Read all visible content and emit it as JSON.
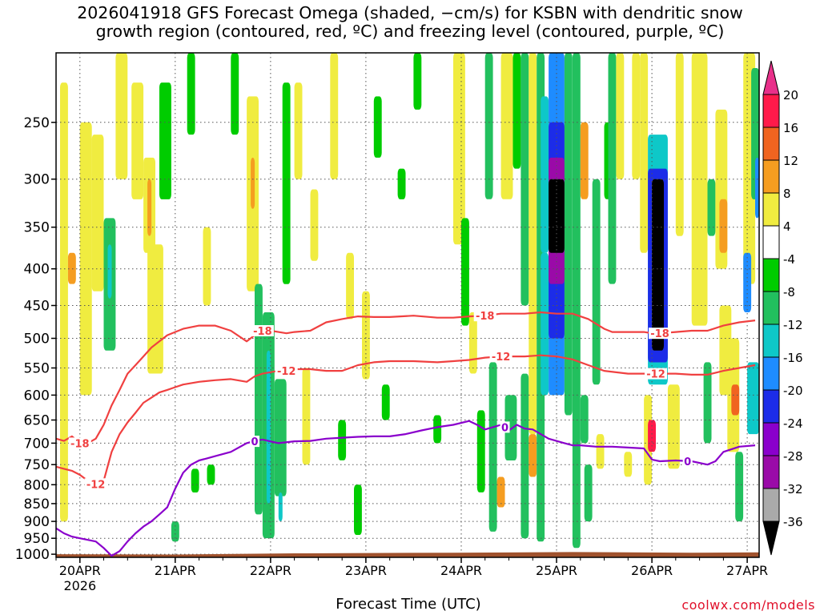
{
  "title": {
    "line1": "2026041918 GFS Forecast Omega (shaded, −cm/s) for KSBN with dendritic snow",
    "line2": "growth region (contoured, red, ºC) and freezing level (contoured, purple, ºC)"
  },
  "xlabel": "Forecast Time (UTC)",
  "credit": "coolwx.com/models",
  "chart_data": {
    "type": "heatmap",
    "title": "2026041918 GFS Forecast Omega (shaded, −cm/s) for KSBN with dendritic snow growth region (contoured, red, ºC) and freezing level (contoured, purple, ºC)",
    "xlabel": "Forecast Time (UTC)",
    "ylabel": "",
    "x_unit": "hours since 2026-04-19 18Z",
    "x_range": [
      0,
      177
    ],
    "y_range": [
      1010,
      200
    ],
    "y_scale": "log-pressure",
    "y_ticks": [
      250,
      300,
      350,
      400,
      450,
      500,
      550,
      600,
      650,
      700,
      750,
      800,
      850,
      900,
      950,
      1000
    ],
    "x_ticks": [
      {
        "hour": 6,
        "label": "20APR",
        "sublabel": "2026"
      },
      {
        "hour": 30,
        "label": "21APR"
      },
      {
        "hour": 54,
        "label": "22APR"
      },
      {
        "hour": 78,
        "label": "23APR"
      },
      {
        "hour": 102,
        "label": "24APR"
      },
      {
        "hour": 126,
        "label": "25APR"
      },
      {
        "hour": 150,
        "label": "26APR"
      },
      {
        "hour": 174,
        "label": "27APR"
      }
    ],
    "grid": true,
    "colorbar": {
      "labels": [
        "20",
        "16",
        "12",
        "8",
        "4",
        "-4",
        "-8",
        "-12",
        "-16",
        "-20",
        "-24",
        "-28",
        "-32",
        "-36"
      ],
      "colors": [
        "#ff1a4a",
        "#f06420",
        "#f59d20",
        "#e5c53a",
        "#f0ec40",
        "#ffffff",
        "#00cc00",
        "#22c05e",
        "#0ec8c8",
        "#1e8cff",
        "#1c2ce8",
        "#8a00cc",
        "#9a0aa8",
        "#aaaaaa",
        "#000000"
      ],
      "top_arrow_color": "#e8308a",
      "bottom_arrow_color": "#000000"
    },
    "series": [
      {
        "name": "-18",
        "color": "#f04040",
        "x": [
          0,
          2,
          4,
          6,
          8,
          10,
          12,
          14,
          16,
          18,
          20,
          22,
          24,
          26,
          28,
          30,
          32,
          36,
          40,
          44,
          48,
          50,
          52,
          54,
          56,
          58,
          60,
          64,
          68,
          72,
          74,
          76,
          80,
          84,
          90,
          96,
          100,
          104,
          108,
          112,
          118,
          122,
          126,
          130,
          134,
          138,
          140,
          144,
          148,
          150,
          152,
          156,
          160,
          164,
          168,
          172,
          176
        ],
        "y": [
          690,
          695,
          685,
          700,
          700,
          690,
          660,
          620,
          590,
          560,
          545,
          530,
          515,
          505,
          495,
          490,
          485,
          480,
          480,
          488,
          505,
          495,
          490,
          488,
          490,
          492,
          490,
          488,
          475,
          470,
          468,
          466,
          467,
          467,
          465,
          468,
          468,
          466,
          465,
          462,
          462,
          460,
          462,
          462,
          470,
          485,
          490,
          490,
          490,
          492,
          492,
          490,
          488,
          488,
          480,
          475,
          472
        ]
      },
      {
        "name": "-12",
        "color": "#f04040",
        "x": [
          0,
          2,
          4,
          6,
          8,
          10,
          12,
          14,
          16,
          18,
          20,
          22,
          24,
          26,
          28,
          30,
          32,
          36,
          40,
          44,
          48,
          50,
          52,
          56,
          60,
          64,
          68,
          72,
          76,
          80,
          84,
          90,
          96,
          100,
          104,
          108,
          112,
          118,
          122,
          126,
          130,
          134,
          138,
          144,
          148,
          150,
          152,
          156,
          160,
          164,
          168,
          172,
          176
        ],
        "y": [
          755,
          760,
          765,
          775,
          790,
          800,
          790,
          720,
          680,
          655,
          635,
          615,
          605,
          595,
          590,
          585,
          580,
          575,
          572,
          570,
          575,
          565,
          560,
          555,
          552,
          552,
          555,
          555,
          545,
          540,
          538,
          538,
          540,
          538,
          536,
          532,
          530,
          530,
          528,
          530,
          535,
          545,
          555,
          560,
          560,
          560,
          560,
          560,
          562,
          562,
          555,
          550,
          545
        ]
      },
      {
        "name": "0",
        "color": "#8a00cc",
        "x": [
          0,
          2,
          4,
          6,
          8,
          10,
          12,
          14,
          16,
          18,
          20,
          22,
          24,
          26,
          28,
          30,
          32,
          34,
          36,
          38,
          40,
          44,
          48,
          50,
          52,
          56,
          60,
          64,
          68,
          72,
          76,
          80,
          84,
          88,
          92,
          96,
          100,
          104,
          106,
          108,
          110,
          112,
          114,
          116,
          118,
          120,
          124,
          128,
          130,
          132,
          136,
          140,
          144,
          148,
          150,
          152,
          156,
          160,
          164,
          166,
          168,
          172,
          176
        ],
        "y": [
          920,
          935,
          945,
          950,
          955,
          960,
          980,
          1005,
          990,
          960,
          935,
          915,
          900,
          880,
          860,
          810,
          770,
          750,
          740,
          735,
          730,
          720,
          700,
          695,
          692,
          700,
          696,
          695,
          690,
          688,
          686,
          685,
          685,
          680,
          672,
          665,
          660,
          652,
          660,
          670,
          665,
          660,
          672,
          660,
          668,
          670,
          690,
          700,
          705,
          705,
          708,
          708,
          710,
          712,
          738,
          742,
          740,
          742,
          750,
          742,
          720,
          708,
          705
        ]
      }
    ],
    "contour_labels": [
      {
        "text": "-18",
        "series": "-18",
        "hour": 6,
        "p": 700
      },
      {
        "text": "-18",
        "series": "-18",
        "hour": 52,
        "p": 488
      },
      {
        "text": "-18",
        "series": "-18",
        "hour": 108,
        "p": 465
      },
      {
        "text": "-18",
        "series": "-18",
        "hour": 152,
        "p": 492
      },
      {
        "text": "-12",
        "series": "-12",
        "hour": 10,
        "p": 798
      },
      {
        "text": "-12",
        "series": "-12",
        "hour": 58,
        "p": 555
      },
      {
        "text": "-12",
        "series": "-12",
        "hour": 112,
        "p": 530
      },
      {
        "text": "-12",
        "series": "-12",
        "hour": 151,
        "p": 560
      },
      {
        "text": "0",
        "series": "0",
        "hour": 50,
        "p": 696
      },
      {
        "text": "0",
        "series": "0",
        "hour": 113,
        "p": 665
      },
      {
        "text": "0",
        "series": "0",
        "hour": 159,
        "p": 742
      }
    ],
    "omega_cells": [
      {
        "x0": 1,
        "x1": 3,
        "p0": 220,
        "p1": 900,
        "v": 5
      },
      {
        "x0": 3,
        "x1": 5,
        "p0": 380,
        "p1": 420,
        "v": 9
      },
      {
        "x0": 6,
        "x1": 9,
        "p0": 250,
        "p1": 600,
        "v": 5
      },
      {
        "x0": 9,
        "x1": 12,
        "p0": 260,
        "p1": 430,
        "v": 5
      },
      {
        "x0": 12,
        "x1": 15,
        "p0": 340,
        "p1": 520,
        "v": -8
      },
      {
        "x0": 13,
        "x1": 14,
        "p0": 370,
        "p1": 440,
        "v": -12
      },
      {
        "x0": 15,
        "x1": 18,
        "p0": 200,
        "p1": 300,
        "v": 5
      },
      {
        "x0": 19,
        "x1": 22,
        "p0": 220,
        "p1": 320,
        "v": 5
      },
      {
        "x0": 22,
        "x1": 25,
        "p0": 280,
        "p1": 380,
        "v": 6
      },
      {
        "x0": 23,
        "x1": 24,
        "p0": 300,
        "p1": 360,
        "v": 9
      },
      {
        "x0": 23,
        "x1": 27,
        "p0": 370,
        "p1": 560,
        "v": 5
      },
      {
        "x0": 26,
        "x1": 29,
        "p0": 220,
        "p1": 320,
        "v": -7
      },
      {
        "x0": 29,
        "x1": 31,
        "p0": 900,
        "p1": 960,
        "v": -8
      },
      {
        "x0": 33,
        "x1": 35,
        "p0": 200,
        "p1": 260,
        "v": -7
      },
      {
        "x0": 34,
        "x1": 36,
        "p0": 760,
        "p1": 820,
        "v": -7
      },
      {
        "x0": 37,
        "x1": 39,
        "p0": 350,
        "p1": 450,
        "v": 5
      },
      {
        "x0": 38,
        "x1": 40,
        "p0": 750,
        "p1": 800,
        "v": -7
      },
      {
        "x0": 44,
        "x1": 46,
        "p0": 200,
        "p1": 260,
        "v": -7
      },
      {
        "x0": 48,
        "x1": 51,
        "p0": 230,
        "p1": 430,
        "v": 6
      },
      {
        "x0": 49,
        "x1": 50,
        "p0": 280,
        "p1": 330,
        "v": 10
      },
      {
        "x0": 50,
        "x1": 52,
        "p0": 420,
        "p1": 880,
        "v": -8
      },
      {
        "x0": 52,
        "x1": 55,
        "p0": 460,
        "p1": 950,
        "v": -8
      },
      {
        "x0": 53,
        "x1": 54,
        "p0": 520,
        "p1": 850,
        "v": -12
      },
      {
        "x0": 53,
        "x1": 54,
        "p0": 560,
        "p1": 800,
        "v": -14
      },
      {
        "x0": 55,
        "x1": 58,
        "p0": 570,
        "p1": 830,
        "v": -8
      },
      {
        "x0": 56,
        "x1": 57,
        "p0": 820,
        "p1": 900,
        "v": -12
      },
      {
        "x0": 57,
        "x1": 59,
        "p0": 220,
        "p1": 420,
        "v": -7
      },
      {
        "x0": 60,
        "x1": 62,
        "p0": 220,
        "p1": 300,
        "v": 5
      },
      {
        "x0": 62,
        "x1": 64,
        "p0": 550,
        "p1": 750,
        "v": 5
      },
      {
        "x0": 64,
        "x1": 66,
        "p0": 310,
        "p1": 390,
        "v": 5
      },
      {
        "x0": 69,
        "x1": 71,
        "p0": 200,
        "p1": 300,
        "v": 5
      },
      {
        "x0": 71,
        "x1": 73,
        "p0": 650,
        "p1": 740,
        "v": -7
      },
      {
        "x0": 73,
        "x1": 75,
        "p0": 380,
        "p1": 470,
        "v": 5
      },
      {
        "x0": 75,
        "x1": 77,
        "p0": 800,
        "p1": 940,
        "v": -7
      },
      {
        "x0": 77,
        "x1": 79,
        "p0": 430,
        "p1": 570,
        "v": 5
      },
      {
        "x0": 80,
        "x1": 82,
        "p0": 230,
        "p1": 280,
        "v": -7
      },
      {
        "x0": 82,
        "x1": 84,
        "p0": 580,
        "p1": 650,
        "v": -7
      },
      {
        "x0": 86,
        "x1": 88,
        "p0": 290,
        "p1": 320,
        "v": -7
      },
      {
        "x0": 90,
        "x1": 92,
        "p0": 200,
        "p1": 240,
        "v": -7
      },
      {
        "x0": 95,
        "x1": 97,
        "p0": 640,
        "p1": 700,
        "v": -7
      },
      {
        "x0": 100,
        "x1": 103,
        "p0": 200,
        "p1": 370,
        "v": 6
      },
      {
        "x0": 102,
        "x1": 104,
        "p0": 340,
        "p1": 480,
        "v": -7
      },
      {
        "x0": 104,
        "x1": 106,
        "p0": 460,
        "p1": 560,
        "v": 5
      },
      {
        "x0": 106,
        "x1": 108,
        "p0": 630,
        "p1": 820,
        "v": -7
      },
      {
        "x0": 108,
        "x1": 110,
        "p0": 200,
        "p1": 320,
        "v": -8
      },
      {
        "x0": 109,
        "x1": 111,
        "p0": 540,
        "p1": 930,
        "v": -8
      },
      {
        "x0": 111,
        "x1": 113,
        "p0": 780,
        "p1": 860,
        "v": 9
      },
      {
        "x0": 112,
        "x1": 115,
        "p0": 200,
        "p1": 320,
        "v": 5
      },
      {
        "x0": 113,
        "x1": 116,
        "p0": 600,
        "p1": 740,
        "v": -8
      },
      {
        "x0": 115,
        "x1": 117,
        "p0": 200,
        "p1": 290,
        "v": -7
      },
      {
        "x0": 117,
        "x1": 119,
        "p0": 200,
        "p1": 450,
        "v": -8
      },
      {
        "x0": 117,
        "x1": 119,
        "p0": 560,
        "p1": 950,
        "v": -8
      },
      {
        "x0": 119,
        "x1": 121,
        "p0": 200,
        "p1": 680,
        "v": 5
      },
      {
        "x0": 119,
        "x1": 121,
        "p0": 680,
        "p1": 780,
        "v": 10
      },
      {
        "x0": 121,
        "x1": 123,
        "p0": 200,
        "p1": 960,
        "v": -9
      },
      {
        "x0": 122,
        "x1": 124,
        "p0": 230,
        "p1": 380,
        "v": -12
      },
      {
        "x0": 122,
        "x1": 124,
        "p0": 380,
        "p1": 600,
        "v": -15
      },
      {
        "x0": 124,
        "x1": 128,
        "p0": 200,
        "p1": 600,
        "v": -16
      },
      {
        "x0": 124,
        "x1": 128,
        "p0": 250,
        "p1": 500,
        "v": -22
      },
      {
        "x0": 124,
        "x1": 128,
        "p0": 280,
        "p1": 420,
        "v": -28
      },
      {
        "x0": 124,
        "x1": 128,
        "p0": 300,
        "p1": 380,
        "v": -38
      },
      {
        "x0": 128,
        "x1": 130,
        "p0": 200,
        "p1": 640,
        "v": -9
      },
      {
        "x0": 130,
        "x1": 132,
        "p0": 200,
        "p1": 980,
        "v": -8
      },
      {
        "x0": 132,
        "x1": 134,
        "p0": 250,
        "p1": 320,
        "v": 8
      },
      {
        "x0": 132,
        "x1": 134,
        "p0": 600,
        "p1": 700,
        "v": -8
      },
      {
        "x0": 133,
        "x1": 135,
        "p0": 750,
        "p1": 900,
        "v": -8
      },
      {
        "x0": 135,
        "x1": 137,
        "p0": 300,
        "p1": 580,
        "v": -8
      },
      {
        "x0": 136,
        "x1": 138,
        "p0": 680,
        "p1": 760,
        "v": 5
      },
      {
        "x0": 138,
        "x1": 140,
        "p0": 250,
        "p1": 320,
        "v": -7
      },
      {
        "x0": 139,
        "x1": 141,
        "p0": 200,
        "p1": 420,
        "v": -8
      },
      {
        "x0": 141,
        "x1": 143,
        "p0": 200,
        "p1": 300,
        "v": 5
      },
      {
        "x0": 143,
        "x1": 145,
        "p0": 720,
        "p1": 780,
        "v": 5
      },
      {
        "x0": 145,
        "x1": 147,
        "p0": 200,
        "p1": 300,
        "v": 5
      },
      {
        "x0": 147,
        "x1": 149,
        "p0": 200,
        "p1": 380,
        "v": 6
      },
      {
        "x0": 148,
        "x1": 150,
        "p0": 600,
        "p1": 800,
        "v": 6
      },
      {
        "x0": 149,
        "x1": 151,
        "p0": 650,
        "p1": 720,
        "v": 16
      },
      {
        "x0": 149,
        "x1": 154,
        "p0": 260,
        "p1": 580,
        "v": -12
      },
      {
        "x0": 149,
        "x1": 154,
        "p0": 290,
        "p1": 540,
        "v": -20
      },
      {
        "x0": 150,
        "x1": 153,
        "p0": 300,
        "p1": 520,
        "v": -38
      },
      {
        "x0": 154,
        "x1": 157,
        "p0": 580,
        "p1": 760,
        "v": 6
      },
      {
        "x0": 156,
        "x1": 158,
        "p0": 200,
        "p1": 360,
        "v": 6
      },
      {
        "x0": 160,
        "x1": 164,
        "p0": 200,
        "p1": 480,
        "v": 5
      },
      {
        "x0": 163,
        "x1": 165,
        "p0": 540,
        "p1": 700,
        "v": -9
      },
      {
        "x0": 164,
        "x1": 166,
        "p0": 300,
        "p1": 360,
        "v": -8
      },
      {
        "x0": 166,
        "x1": 169,
        "p0": 240,
        "p1": 400,
        "v": 6
      },
      {
        "x0": 167,
        "x1": 169,
        "p0": 320,
        "p1": 380,
        "v": 10
      },
      {
        "x0": 167,
        "x1": 170,
        "p0": 450,
        "p1": 600,
        "v": 6
      },
      {
        "x0": 169,
        "x1": 172,
        "p0": 500,
        "p1": 720,
        "v": 7
      },
      {
        "x0": 170,
        "x1": 172,
        "p0": 580,
        "p1": 640,
        "v": 14
      },
      {
        "x0": 171,
        "x1": 173,
        "p0": 720,
        "p1": 900,
        "v": -8
      },
      {
        "x0": 173,
        "x1": 176,
        "p0": 200,
        "p1": 420,
        "v": 5
      },
      {
        "x0": 173,
        "x1": 175,
        "p0": 380,
        "p1": 460,
        "v": -18
      },
      {
        "x0": 174,
        "x1": 177,
        "p0": 540,
        "p1": 680,
        "v": -14
      },
      {
        "x0": 175,
        "x1": 177,
        "p0": 210,
        "p1": 320,
        "v": -8
      },
      {
        "x0": 176,
        "x1": 177,
        "p0": 280,
        "p1": 340,
        "v": -18
      }
    ]
  }
}
